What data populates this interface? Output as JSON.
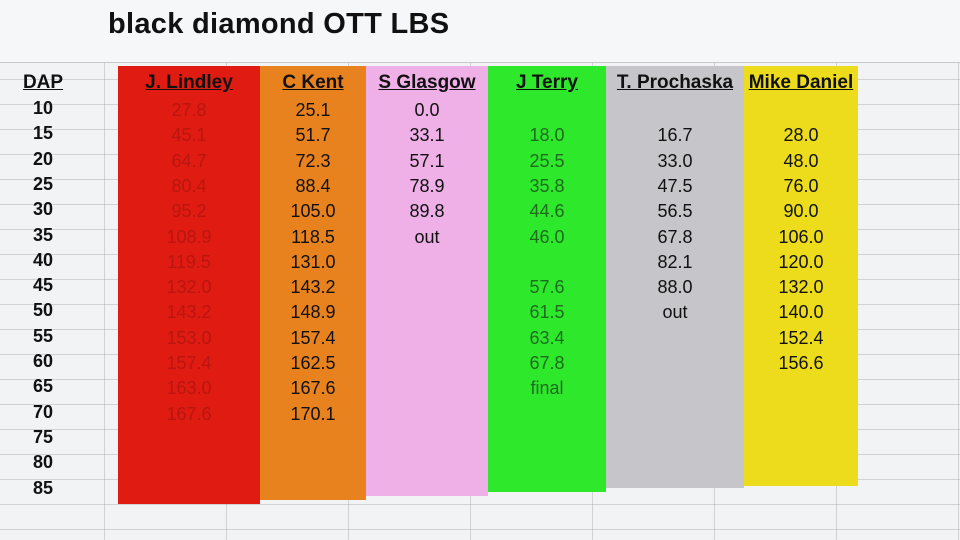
{
  "title": "black diamond OTT LBS",
  "dap": {
    "header": "DAP",
    "values": [
      "10",
      "15",
      "20",
      "25",
      "30",
      "35",
      "40",
      "45",
      "50",
      "55",
      "60",
      "65",
      "70",
      "75",
      "80",
      "85"
    ]
  },
  "columns": [
    {
      "name": "J. Lindley",
      "color": "#e01b12",
      "text_color": "#b8160f",
      "header_color": "#111111",
      "values": [
        "27.8",
        "45.1",
        "64.7",
        "80.4",
        "95.2",
        "108.9",
        "119.5",
        "132.0",
        "143.2",
        "153.0",
        "157.4",
        "163.0",
        "167.6"
      ]
    },
    {
      "name": "C Kent",
      "color": "#e8821e",
      "text_color": "#111111",
      "header_color": "#111111",
      "values": [
        "25.1",
        "51.7",
        "72.3",
        "88.4",
        "105.0",
        "118.5",
        "131.0",
        "143.2",
        "148.9",
        "157.4",
        "162.5",
        "167.6",
        "170.1"
      ]
    },
    {
      "name": "S Glasgow",
      "color": "#eeb0e6",
      "text_color": "#111111",
      "header_color": "#111111",
      "values": [
        "0.0",
        "33.1",
        "57.1",
        "78.9",
        "89.8",
        "out"
      ]
    },
    {
      "name": "J Terry",
      "color": "#2ee82c",
      "text_color": "#1e6b1e",
      "header_color": "#111111",
      "values": [
        "18.0",
        "25.5",
        "35.8",
        "44.6",
        "46.0",
        "",
        "57.6",
        "61.5",
        "63.4",
        "67.8",
        "final"
      ]
    },
    {
      "name": "T. Prochaska",
      "color": "#c6c5c9",
      "text_color": "#111111",
      "header_color": "#111111",
      "values": [
        "16.7",
        "33.0",
        "47.5",
        "56.5",
        "67.8",
        "82.1",
        "88.0",
        "out"
      ]
    },
    {
      "name": "Mike Daniel",
      "color": "#ecdc1c",
      "text_color": "#111111",
      "header_color": "#111111",
      "values": [
        "28.0",
        "48.0",
        "76.0",
        "90.0",
        "106.0",
        "120.0",
        "132.0",
        "140.0",
        "152.4",
        "156.6"
      ]
    }
  ]
}
